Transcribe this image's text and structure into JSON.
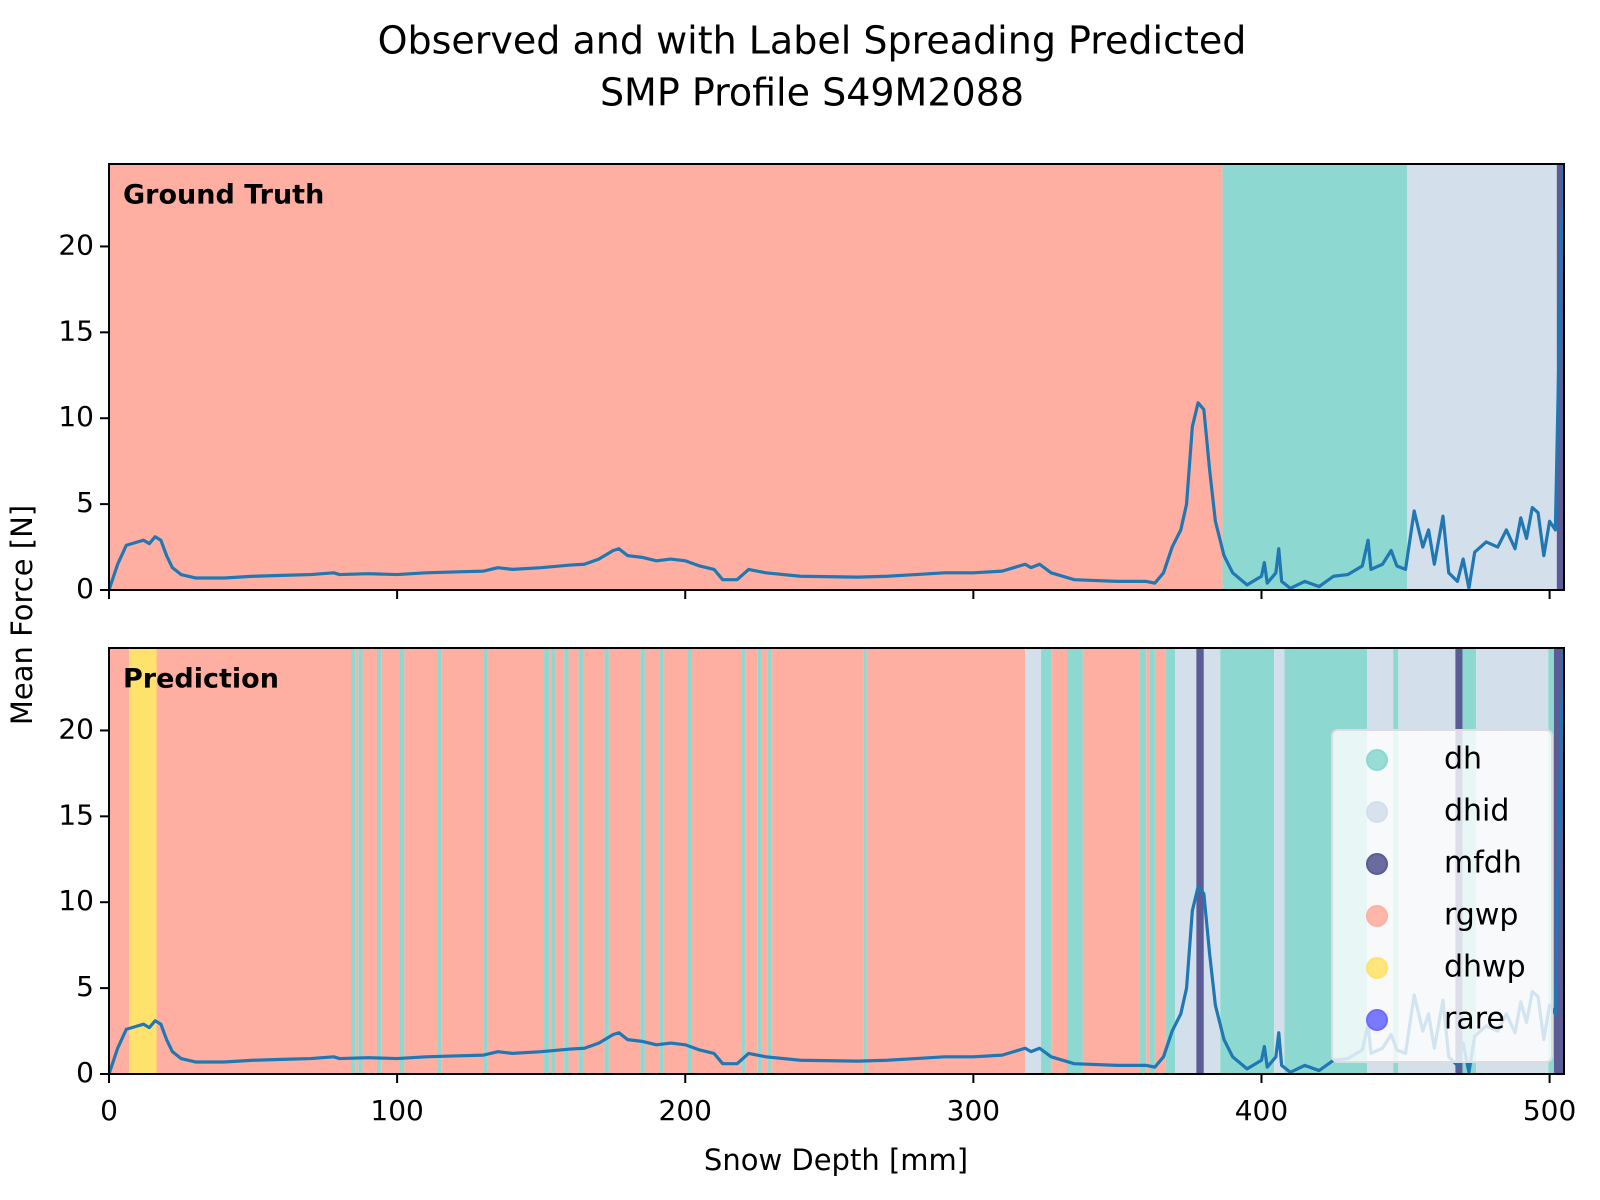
{
  "chart_data": {
    "type": "line",
    "title": [
      "Observed and with Label Spreading Predicted",
      "SMP Profile S49M2088"
    ],
    "xlabel": "Snow Depth [mm]",
    "ylabel": "Mean Force [N]",
    "xlim": [
      0,
      505
    ],
    "xticks": [
      0,
      100,
      200,
      300,
      400,
      500
    ],
    "ylim": [
      0,
      24.8
    ],
    "yticks": [
      0,
      5,
      10,
      15,
      20
    ],
    "legend": "lower right",
    "classes": [
      {
        "name": "dh",
        "color": "#8dd8d0"
      },
      {
        "name": "dhid",
        "color": "#d4dfec"
      },
      {
        "name": "mfdh",
        "color": "#5b5b96"
      },
      {
        "name": "rgwp",
        "color": "#ffafa1"
      },
      {
        "name": "dhwp",
        "color": "#ffe26b"
      },
      {
        "name": "rare",
        "color": "#6b6bff"
      }
    ],
    "line": {
      "color": "#1f77b4",
      "x": [
        0,
        3,
        6,
        10,
        12,
        14,
        16,
        18,
        20,
        22,
        25,
        30,
        40,
        50,
        60,
        70,
        78,
        80,
        90,
        100,
        110,
        120,
        130,
        135,
        140,
        150,
        160,
        165,
        170,
        175,
        177,
        180,
        185,
        190,
        195,
        200,
        205,
        210,
        213,
        218,
        222,
        228,
        240,
        260,
        270,
        280,
        290,
        300,
        310,
        318,
        320,
        323,
        327,
        335,
        350,
        360,
        363,
        366,
        369,
        372,
        374,
        376,
        378,
        380,
        382,
        384,
        387,
        390,
        395,
        400,
        401,
        402,
        405,
        406,
        407,
        410,
        415,
        420,
        425,
        430,
        435,
        437,
        438,
        442,
        445,
        447,
        450,
        453,
        456,
        458,
        460,
        463,
        465,
        468,
        470,
        472,
        474,
        478,
        482,
        485,
        488,
        490,
        492,
        494,
        496,
        498,
        500,
        502,
        504,
        505
      ],
      "values": [
        0,
        1.5,
        2.6,
        2.8,
        2.9,
        2.7,
        3.1,
        2.9,
        2.0,
        1.3,
        0.9,
        0.7,
        0.7,
        0.8,
        0.85,
        0.9,
        1.0,
        0.9,
        0.95,
        0.9,
        1.0,
        1.05,
        1.1,
        1.3,
        1.2,
        1.3,
        1.45,
        1.5,
        1.8,
        2.3,
        2.4,
        2.0,
        1.9,
        1.7,
        1.8,
        1.7,
        1.4,
        1.2,
        0.6,
        0.6,
        1.2,
        1.0,
        0.8,
        0.75,
        0.8,
        0.9,
        1.0,
        1.0,
        1.1,
        1.5,
        1.3,
        1.5,
        1.0,
        0.6,
        0.5,
        0.5,
        0.4,
        1.0,
        2.5,
        3.5,
        5.0,
        9.5,
        10.9,
        10.5,
        7.0,
        4.0,
        2.0,
        1.0,
        0.3,
        0.8,
        1.6,
        0.4,
        1.0,
        2.4,
        0.5,
        0.1,
        0.5,
        0.2,
        0.8,
        0.9,
        1.4,
        2.9,
        1.2,
        1.5,
        2.3,
        1.4,
        1.2,
        4.6,
        2.5,
        3.5,
        1.5,
        4.3,
        1.0,
        0.5,
        1.8,
        0.1,
        2.2,
        2.8,
        2.5,
        3.5,
        2.4,
        4.2,
        3.0,
        4.8,
        4.5,
        2.0,
        4.0,
        3.5,
        20,
        24.8
      ]
    },
    "panels": [
      {
        "label": "Ground Truth",
        "show_legend": false,
        "show_xticklabels": false,
        "spans": [
          [
            0,
            386.5,
            "rgwp"
          ],
          [
            386.5,
            450.5,
            "dh"
          ],
          [
            450.5,
            502.5,
            "dhid"
          ],
          [
            502.5,
            505,
            "mfdh"
          ]
        ]
      },
      {
        "label": "Prediction",
        "show_legend": true,
        "show_xticklabels": true,
        "spans": [
          [
            0,
            7,
            "rgwp"
          ],
          [
            7,
            16.5,
            "dhwp"
          ],
          [
            16.5,
            84,
            "rgwp"
          ],
          [
            84,
            85.5,
            "dh"
          ],
          [
            85.5,
            86.5,
            "rgwp"
          ],
          [
            86.5,
            88,
            "dh"
          ],
          [
            88,
            93,
            "rgwp"
          ],
          [
            93,
            94.5,
            "dh"
          ],
          [
            94.5,
            101,
            "rgwp"
          ],
          [
            101,
            102.5,
            "dh"
          ],
          [
            102.5,
            114,
            "rgwp"
          ],
          [
            114,
            115.5,
            "dh"
          ],
          [
            115.5,
            130,
            "rgwp"
          ],
          [
            130,
            131.5,
            "dh"
          ],
          [
            131.5,
            151,
            "rgwp"
          ],
          [
            151,
            153,
            "dh"
          ],
          [
            153,
            153.6,
            "rgwp"
          ],
          [
            153.6,
            155,
            "dh"
          ],
          [
            155,
            158,
            "rgwp"
          ],
          [
            158,
            159.5,
            "dh"
          ],
          [
            159.5,
            163,
            "rgwp"
          ],
          [
            163,
            164.5,
            "dh"
          ],
          [
            164.5,
            172,
            "rgwp"
          ],
          [
            172,
            173.5,
            "dh"
          ],
          [
            173.5,
            184.5,
            "rgwp"
          ],
          [
            184.5,
            186,
            "dh"
          ],
          [
            186,
            191,
            "rgwp"
          ],
          [
            191,
            192.5,
            "dh"
          ],
          [
            192.5,
            200.8,
            "rgwp"
          ],
          [
            200.8,
            202,
            "dh"
          ],
          [
            202,
            219.5,
            "rgwp"
          ],
          [
            219.5,
            221,
            "dh"
          ],
          [
            221,
            225.2,
            "rgwp"
          ],
          [
            225.2,
            226.5,
            "dh"
          ],
          [
            226.5,
            228.5,
            "rgwp"
          ],
          [
            228.5,
            230,
            "dh"
          ],
          [
            230,
            262,
            "rgwp"
          ],
          [
            262,
            263,
            "dh"
          ],
          [
            263,
            318,
            "rgwp"
          ],
          [
            318,
            323.5,
            "dhid"
          ],
          [
            323.5,
            327,
            "dh"
          ],
          [
            327,
            332.5,
            "rgwp"
          ],
          [
            332.5,
            338,
            "dh"
          ],
          [
            338,
            357.7,
            "rgwp"
          ],
          [
            357.7,
            360,
            "dh"
          ],
          [
            360,
            361,
            "rgwp"
          ],
          [
            361,
            363,
            "dh"
          ],
          [
            363,
            366.6,
            "rgwp"
          ],
          [
            366.6,
            370,
            "dh"
          ],
          [
            370,
            377.4,
            "dhid"
          ],
          [
            377.4,
            380,
            "mfdh"
          ],
          [
            380,
            385.7,
            "dhid"
          ],
          [
            385.7,
            404.4,
            "dh"
          ],
          [
            404.4,
            408,
            "dhid"
          ],
          [
            408,
            436.7,
            "dh"
          ],
          [
            436.7,
            445.7,
            "dhid"
          ],
          [
            445.7,
            447.5,
            "dh"
          ],
          [
            447.5,
            467.3,
            "dhid"
          ],
          [
            467.3,
            469.8,
            "mfdh"
          ],
          [
            469.8,
            474.5,
            "dh"
          ],
          [
            474.5,
            499.6,
            "dhid"
          ],
          [
            499.6,
            501.5,
            "dh"
          ],
          [
            501.5,
            505,
            "mfdh"
          ]
        ]
      }
    ]
  }
}
